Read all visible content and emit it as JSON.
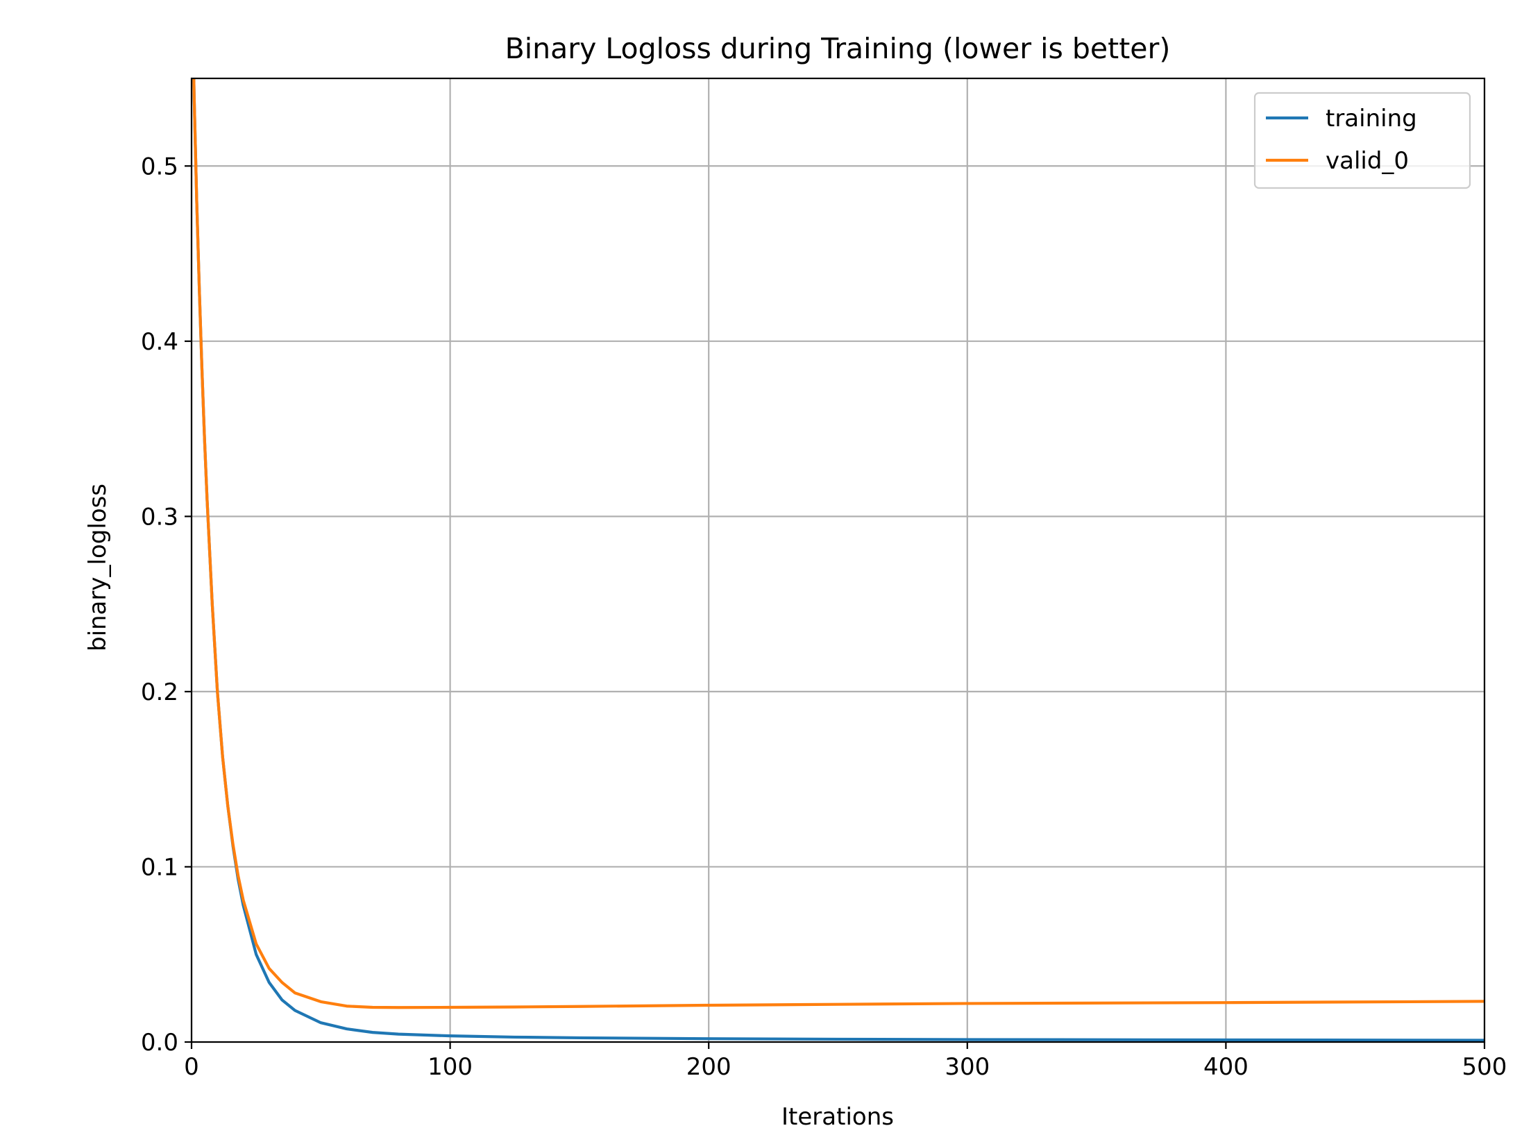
{
  "chart_data": {
    "type": "line",
    "title": "Binary Logloss during Training (lower is better)",
    "xlabel": "Iterations",
    "ylabel": "binary_logloss",
    "xlim": [
      0,
      500
    ],
    "ylim": [
      0,
      0.55
    ],
    "xticks": [
      0,
      100,
      200,
      300,
      400,
      500
    ],
    "xtick_labels": [
      "0",
      "100",
      "200",
      "300",
      "400",
      "500"
    ],
    "yticks": [
      0,
      0.1,
      0.2,
      0.3,
      0.4,
      0.5
    ],
    "ytick_labels": [
      "0.0",
      "0.1",
      "0.2",
      "0.3",
      "0.4",
      "0.5"
    ],
    "grid": true,
    "legend_position": "top-right",
    "series": [
      {
        "name": "training",
        "color": "#1f77b4",
        "x": [
          0,
          1,
          2,
          3,
          4,
          5,
          6,
          8,
          10,
          12,
          14,
          16,
          18,
          20,
          25,
          30,
          35,
          40,
          50,
          60,
          70,
          80,
          100,
          125,
          150,
          200,
          250,
          300,
          400,
          500
        ],
        "y": [
          0.62,
          0.54,
          0.48,
          0.43,
          0.385,
          0.345,
          0.31,
          0.25,
          0.2,
          0.163,
          0.135,
          0.112,
          0.093,
          0.078,
          0.05,
          0.034,
          0.024,
          0.018,
          0.011,
          0.0075,
          0.0055,
          0.0045,
          0.0035,
          0.0028,
          0.0024,
          0.0019,
          0.0016,
          0.0014,
          0.0012,
          0.001
        ]
      },
      {
        "name": "valid_0",
        "color": "#ff7f0e",
        "x": [
          0,
          1,
          2,
          3,
          4,
          5,
          6,
          8,
          10,
          12,
          14,
          16,
          18,
          20,
          25,
          30,
          35,
          40,
          50,
          60,
          70,
          80,
          100,
          125,
          150,
          200,
          250,
          300,
          400,
          500
        ],
        "y": [
          0.62,
          0.54,
          0.48,
          0.43,
          0.385,
          0.345,
          0.31,
          0.25,
          0.2,
          0.163,
          0.135,
          0.113,
          0.095,
          0.081,
          0.056,
          0.042,
          0.034,
          0.028,
          0.023,
          0.0205,
          0.0198,
          0.0197,
          0.0198,
          0.02,
          0.0203,
          0.021,
          0.0215,
          0.022,
          0.0225,
          0.0232
        ]
      }
    ]
  }
}
